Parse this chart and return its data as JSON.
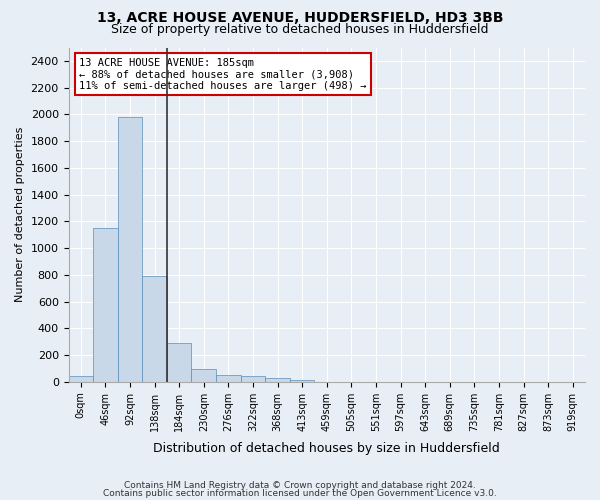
{
  "title_line1": "13, ACRE HOUSE AVENUE, HUDDERSFIELD, HD3 3BB",
  "title_line2": "Size of property relative to detached houses in Huddersfield",
  "xlabel": "Distribution of detached houses by size in Huddersfield",
  "ylabel": "Number of detached properties",
  "bar_color": "#c8d8e8",
  "bar_edge_color": "#5b8db8",
  "vline_color": "#333333",
  "annotation_box_edgecolor": "#cc0000",
  "annotation_text_line1": "13 ACRE HOUSE AVENUE: 185sqm",
  "annotation_text_line2": "← 88% of detached houses are smaller (3,908)",
  "annotation_text_line3": "11% of semi-detached houses are larger (498) →",
  "tick_labels": [
    "0sqm",
    "46sqm",
    "92sqm",
    "138sqm",
    "184sqm",
    "230sqm",
    "276sqm",
    "322sqm",
    "368sqm",
    "413sqm",
    "459sqm",
    "505sqm",
    "551sqm",
    "597sqm",
    "643sqm",
    "689sqm",
    "735sqm",
    "781sqm",
    "827sqm",
    "873sqm",
    "919sqm"
  ],
  "values": [
    40,
    1150,
    1980,
    790,
    290,
    95,
    50,
    40,
    25,
    15,
    0,
    0,
    0,
    0,
    0,
    0,
    0,
    0,
    0,
    0,
    0
  ],
  "ylim": [
    0,
    2500
  ],
  "yticks": [
    0,
    200,
    400,
    600,
    800,
    1000,
    1200,
    1400,
    1600,
    1800,
    2000,
    2200,
    2400
  ],
  "footer_line1": "Contains HM Land Registry data © Crown copyright and database right 2024.",
  "footer_line2": "Contains public sector information licensed under the Open Government Licence v3.0.",
  "bg_color": "#e8eef5",
  "plot_bg_color": "#e8eef5"
}
